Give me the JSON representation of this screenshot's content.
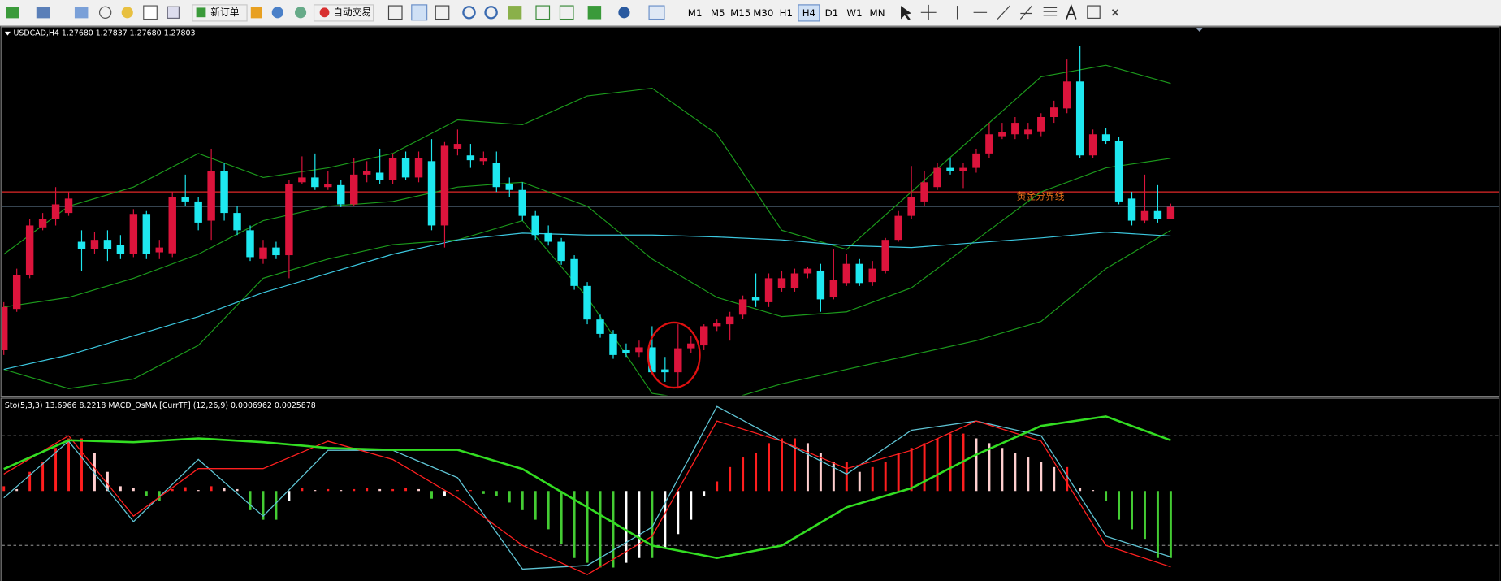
{
  "toolbar": {
    "new_order": "新订单",
    "auto_trading": "自动交易",
    "timeframes": [
      "M1",
      "M5",
      "M15",
      "M30",
      "H1",
      "H4",
      "D1",
      "W1",
      "MN"
    ],
    "active_timeframe": 5
  },
  "chart_data": [
    {
      "type": "candlestick",
      "title": "USDCAD,H4  1.27680 1.27837 1.27680 1.27803",
      "ylim": [
        1.2584,
        1.2968
      ],
      "up_color": "#dc143c",
      "down_color": "#1ee8f0",
      "open": [
        1.2631,
        1.2674,
        1.2709,
        1.2759,
        1.2768,
        1.2774,
        1.2744,
        1.2736,
        1.2746,
        1.2741,
        1.2731,
        1.2773,
        1.2733,
        1.2732,
        1.2791,
        1.2786,
        1.2766,
        1.2818,
        1.2774,
        1.2756,
        1.2726,
        1.2738,
        1.273,
        1.2806,
        1.2811,
        1.2801,
        1.2803,
        1.2783,
        1.2814,
        1.2816,
        1.2808,
        1.2831,
        1.2811,
        1.2828,
        1.2761,
        1.2841,
        1.2834,
        1.2828,
        1.2826,
        1.2804,
        1.2798,
        1.2771,
        1.2753,
        1.2744,
        1.2726,
        1.2698,
        1.2663,
        1.2648,
        1.2631,
        1.2629,
        1.2634,
        1.2611,
        1.2608,
        1.2633,
        1.2636,
        1.2656,
        1.2658,
        1.2668,
        1.2686,
        1.2681,
        1.2696,
        1.2696,
        1.2711,
        1.2714,
        1.2686,
        1.2701,
        1.2721,
        1.2702,
        1.2714,
        1.2746,
        1.2771,
        1.2786,
        1.2801,
        1.2821,
        1.2818,
        1.2821,
        1.2836,
        1.2854,
        1.2856,
        1.2856,
        1.2859,
        1.2874,
        1.2883,
        1.2911,
        1.2834,
        1.2856,
        1.2849,
        1.2789,
        1.2766,
        1.2776,
        1.2768
      ],
      "high": [
        1.2681,
        1.2716,
        1.2768,
        1.2774,
        1.2801,
        1.2796,
        1.2756,
        1.2754,
        1.2756,
        1.2751,
        1.2778,
        1.2776,
        1.2746,
        1.2796,
        1.2814,
        1.2791,
        1.2841,
        1.2826,
        1.2781,
        1.2761,
        1.2746,
        1.2744,
        1.2808,
        1.2833,
        1.2836,
        1.2818,
        1.2808,
        1.2831,
        1.2828,
        1.2841,
        1.2836,
        1.2838,
        1.2838,
        1.2851,
        1.2848,
        1.2861,
        1.2846,
        1.2838,
        1.2838,
        1.2811,
        1.2806,
        1.2776,
        1.2761,
        1.2748,
        1.273,
        1.2702,
        1.2668,
        1.2652,
        1.2638,
        1.2641,
        1.2656,
        1.2624,
        1.2658,
        1.2646,
        1.2658,
        1.2663,
        1.2671,
        1.2688,
        1.2711,
        1.2711,
        1.2714,
        1.2716,
        1.2718,
        1.2721,
        1.2736,
        1.2731,
        1.2726,
        1.2724,
        1.2748,
        1.2776,
        1.2823,
        1.2818,
        1.2826,
        1.2831,
        1.2826,
        1.2841,
        1.2868,
        1.2868,
        1.2874,
        1.2868,
        1.2878,
        1.2891,
        1.2934,
        1.2948,
        1.2861,
        1.2863,
        1.2853,
        1.2796,
        1.2814,
        1.2803,
        1.27837
      ],
      "low": [
        1.2626,
        1.2671,
        1.2706,
        1.2756,
        1.2761,
        1.2771,
        1.2714,
        1.2731,
        1.2724,
        1.2726,
        1.2728,
        1.2726,
        1.2726,
        1.2728,
        1.2781,
        1.2756,
        1.2746,
        1.2766,
        1.2751,
        1.2724,
        1.2721,
        1.2726,
        1.2706,
        1.2804,
        1.2798,
        1.2798,
        1.278,
        1.2781,
        1.2806,
        1.2804,
        1.2804,
        1.2808,
        1.2806,
        1.2756,
        1.2738,
        1.2834,
        1.2821,
        1.2824,
        1.2796,
        1.2791,
        1.2766,
        1.2746,
        1.274,
        1.272,
        1.2694,
        1.2658,
        1.2644,
        1.2622,
        1.2624,
        1.2624,
        1.2606,
        1.2598,
        1.2591,
        1.2628,
        1.2631,
        1.2651,
        1.2641,
        1.2664,
        1.2676,
        1.2676,
        1.2692,
        1.2692,
        1.2706,
        1.2671,
        1.2684,
        1.2698,
        1.2698,
        1.2698,
        1.2711,
        1.2744,
        1.2768,
        1.2781,
        1.2798,
        1.2814,
        1.28,
        1.2816,
        1.2831,
        1.2851,
        1.2851,
        1.2851,
        1.2854,
        1.2868,
        1.2878,
        1.2831,
        1.2831,
        1.2846,
        1.2783,
        1.2761,
        1.2763,
        1.2764,
        1.2768
      ],
      "close": [
        1.2676,
        1.2709,
        1.2761,
        1.2768,
        1.2783,
        1.2789,
        1.2736,
        1.2746,
        1.2736,
        1.2731,
        1.2773,
        1.2731,
        1.2738,
        1.2791,
        1.2786,
        1.2764,
        1.2818,
        1.2774,
        1.2756,
        1.2728,
        1.2738,
        1.273,
        1.2804,
        1.2811,
        1.2801,
        1.2804,
        1.2783,
        1.2814,
        1.2818,
        1.2808,
        1.2831,
        1.2811,
        1.2831,
        1.2761,
        1.2844,
        1.2846,
        1.2829,
        1.2831,
        1.2801,
        1.2798,
        1.2771,
        1.2751,
        1.2744,
        1.2724,
        1.2698,
        1.2663,
        1.2648,
        1.2626,
        1.2628,
        1.2634,
        1.2608,
        1.2608,
        1.2633,
        1.2638,
        1.2656,
        1.2659,
        1.2666,
        1.2684,
        1.2683,
        1.2706,
        1.2706,
        1.2711,
        1.2716,
        1.2684,
        1.2704,
        1.2721,
        1.2701,
        1.2716,
        1.2746,
        1.2771,
        1.2791,
        1.2806,
        1.2821,
        1.2818,
        1.2821,
        1.2836,
        1.2856,
        1.2858,
        1.2868,
        1.2861,
        1.2874,
        1.2884,
        1.2911,
        1.2834,
        1.2856,
        1.2849,
        1.2786,
        1.2766,
        1.2776,
        1.2768,
        1.27803
      ],
      "overlays": [
        {
          "color": "#1c9a1c",
          "values": [
            1.2731,
            1.2781,
            1.2801,
            1.2836,
            1.2811,
            1.2821,
            1.2836,
            1.2871,
            1.2866,
            1.2896,
            1.2904,
            1.2856,
            1.2756,
            1.2736,
            1.2796,
            1.2856,
            1.2916,
            1.2928,
            1.2909
          ]
        },
        {
          "color": "#1c9a1c",
          "values": [
            1.2676,
            1.2686,
            1.2706,
            1.2731,
            1.2766,
            1.2781,
            1.2786,
            1.2801,
            1.2806,
            1.2781,
            1.2726,
            1.2686,
            1.2666,
            1.2671,
            1.2696,
            1.2746,
            1.2796,
            1.2821,
            1.2831
          ]
        },
        {
          "color": "#1c9a1c",
          "values": [
            1.2611,
            1.2591,
            1.2601,
            1.2636,
            1.2706,
            1.2726,
            1.2741,
            1.2746,
            1.2766,
            1.2686,
            1.2586,
            1.2576,
            1.2596,
            1.2611,
            1.2626,
            1.2641,
            1.2661,
            1.2716,
            1.2756
          ]
        },
        {
          "color": "#3cc8e0",
          "values": [
            1.2611,
            1.2626,
            1.2646,
            1.2666,
            1.2691,
            1.2711,
            1.2731,
            1.2746,
            1.2753,
            1.2751,
            1.2751,
            1.2749,
            1.2746,
            1.274,
            1.2738,
            1.2743,
            1.2748,
            1.2754,
            1.275
          ]
        }
      ],
      "hlines": [
        {
          "value": 1.2796,
          "color": "#e02828",
          "label": "黄金分界线"
        },
        {
          "value": 1.2781,
          "color": "#8fb4d4"
        }
      ]
    },
    {
      "type": "oscillator",
      "title": "Sto(5,3,3) 13.6966 8.2218  MACD_OsMA [CurrTF] (12,26,9) 0.0006962 0.0025878",
      "ylim": [
        0,
        100
      ],
      "levels": [
        80,
        20
      ],
      "y2lim": [
        -0.00095,
        0.00096
      ],
      "series": [
        {
          "color": "#5fc4d4",
          "values": [
            46,
            77,
            33,
            67,
            36,
            72,
            72,
            57,
            7,
            9,
            30,
            96,
            77,
            59,
            83,
            88,
            80,
            25,
            13.6966
          ]
        },
        {
          "color": "#ff2020",
          "values": [
            59,
            80,
            36,
            62,
            62,
            77,
            67,
            46,
            20,
            4,
            25,
            88,
            77,
            62,
            72,
            88,
            77,
            20,
            8.2218
          ]
        },
        {
          "color": "#33dd22",
          "axis": "y2",
          "values": [
            0.00023,
            0.00053,
            0.00051,
            0.00055,
            0.00051,
            0.00045,
            0.00043,
            0.00043,
            0.00023,
            -0.00017,
            -0.00057,
            -0.0007,
            -0.00057,
            -0.00017,
            3e-05,
            0.00038,
            0.00068,
            0.00078,
            0.00053
          ]
        }
      ],
      "histogram": {
        "axis": "y2",
        "colors": {
          "up_rising": "#ff1e1e",
          "up_falling": "#ffcfcf",
          "down_falling": "#44cc33",
          "down_rising": "#ffffff"
        },
        "values": [
          5e-05,
          2e-05,
          0.0002,
          0.0003,
          0.00045,
          0.00055,
          0.00055,
          0.0004,
          0.0002,
          5e-05,
          3e-05,
          -5e-05,
          -0.0001,
          2e-05,
          4e-05,
          1e-05,
          5e-05,
          3e-05,
          2e-05,
          -0.0002,
          -0.0003,
          -0.0003,
          -0.0001,
          3e-05,
          1e-05,
          2e-05,
          1e-05,
          2e-05,
          3e-05,
          2e-05,
          2e-05,
          3e-05,
          2e-05,
          -8e-05,
          -5e-05,
          1e-05,
          1e-05,
          -3e-05,
          -5e-05,
          -0.00012,
          -0.0002,
          -0.0003,
          -0.0004,
          -0.00055,
          -0.0007,
          -0.00075,
          -0.0008,
          -0.0008,
          -0.00075,
          -0.0007,
          -0.0007,
          -0.0006,
          -0.00045,
          -0.0003,
          -5e-05,
          0.0001,
          0.00025,
          0.00035,
          0.0004,
          0.0005,
          0.00055,
          0.00055,
          0.0005,
          0.0004,
          0.0003,
          0.0003,
          0.0002,
          0.00025,
          0.0003,
          0.0004,
          0.00045,
          0.0005,
          0.00055,
          0.0006,
          0.0006,
          0.00055,
          0.0005,
          0.00045,
          0.0004,
          0.00035,
          0.0003,
          0.00025,
          0.00025,
          3e-05,
          1e-05,
          -0.0001,
          -0.0003,
          -0.0004,
          -0.0005,
          -0.0007,
          -0.0007
        ]
      }
    }
  ]
}
